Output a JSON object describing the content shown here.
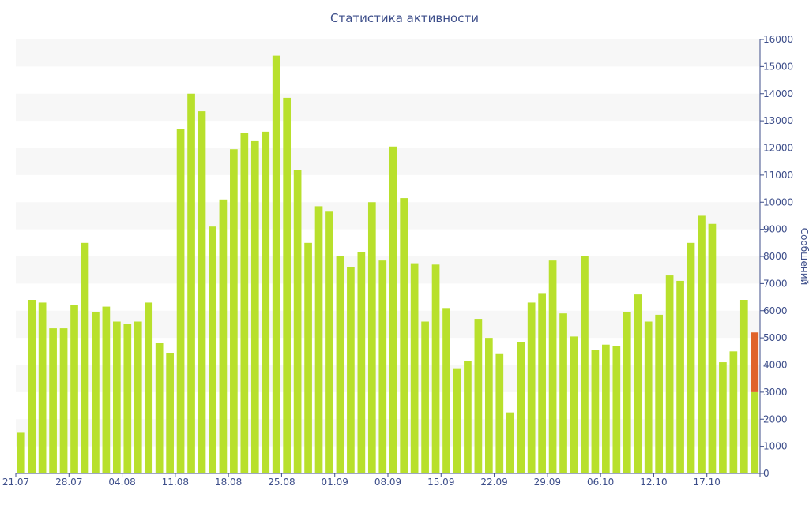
{
  "chart_data": {
    "type": "bar",
    "title": "Статистика активности",
    "ylabel": "Сообщений",
    "xlabel": "",
    "ylim": [
      0,
      16000
    ],
    "yticks": [
      0,
      1000,
      2000,
      3000,
      4000,
      5000,
      6000,
      7000,
      8000,
      9000,
      10000,
      11000,
      12000,
      13000,
      14000,
      15000,
      16000
    ],
    "xtick_labels": [
      "21.07",
      "28.07",
      "04.08",
      "11.08",
      "18.08",
      "25.08",
      "01.09",
      "08.09",
      "15.09",
      "22.09",
      "29.09",
      "06.10",
      "12.10",
      "17.10"
    ],
    "y_axis_position": "right",
    "grid": "alternating horizontal bands",
    "colors": {
      "bar": "#b8e02c",
      "highlight": "#e0632a",
      "band": "#f7f7f7",
      "axis": "#3d4e8a"
    },
    "values": [
      1500,
      6400,
      6300,
      5350,
      5350,
      6200,
      8500,
      5950,
      6150,
      5600,
      5500,
      5600,
      6300,
      4800,
      4450,
      12700,
      14000,
      13350,
      9100,
      10100,
      11950,
      12550,
      12250,
      12600,
      15400,
      13850,
      11200,
      8500,
      9850,
      9650,
      8000,
      7600,
      8150,
      10000,
      7850,
      12050,
      10150,
      7750,
      5600,
      7700,
      6100,
      3850,
      4150,
      5700,
      5000,
      4400,
      2250,
      4850,
      6300,
      6650,
      7850,
      5900,
      5050,
      8000,
      4550,
      4750,
      4700,
      5950,
      6600,
      5600,
      5850,
      7300,
      7100,
      8500,
      9500,
      9200,
      4100,
      4500,
      6400,
      3000
    ],
    "highlight": {
      "index": 69,
      "base": 3000,
      "top": 5200
    }
  }
}
